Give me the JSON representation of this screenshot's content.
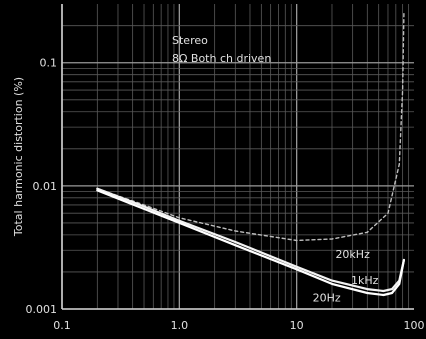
{
  "chart_data": {
    "type": "line",
    "title": "",
    "xlabel": "",
    "ylabel": "Total harmonic distortion (%)",
    "xscale": "log",
    "yscale": "log",
    "xlim": [
      0.1,
      100
    ],
    "ylim": [
      0.001,
      0.3
    ],
    "grid": true,
    "x_ticks": [
      {
        "value": 0.1,
        "label": "0.1"
      },
      {
        "value": 1,
        "label": "1.0"
      },
      {
        "value": 10,
        "label": "10"
      },
      {
        "value": 100,
        "label": "100"
      }
    ],
    "y_ticks": [
      {
        "value": 0.001,
        "label": "0.001"
      },
      {
        "value": 0.01,
        "label": "0.01"
      },
      {
        "value": 0.1,
        "label": "0.1"
      }
    ],
    "annotations": [
      "Stereo",
      "8Ω Both ch driven"
    ],
    "series": [
      {
        "name": "20kHz",
        "label": "20kHz",
        "color": "#bdbdbd",
        "style": "dashed",
        "x": [
          0.2,
          0.5,
          1,
          3,
          10,
          20,
          40,
          60,
          75,
          80,
          82
        ],
        "y": [
          0.0095,
          0.007,
          0.0055,
          0.0043,
          0.0036,
          0.0037,
          0.0042,
          0.006,
          0.015,
          0.06,
          0.25
        ]
      },
      {
        "name": "1kHz",
        "label": "1kHz",
        "color": "#f2f2f2",
        "style": "solid",
        "x": [
          0.2,
          0.5,
          1,
          3,
          10,
          20,
          40,
          55,
          65,
          75,
          82
        ],
        "y": [
          0.0095,
          0.0068,
          0.0052,
          0.0035,
          0.0022,
          0.0017,
          0.00145,
          0.0014,
          0.00145,
          0.0017,
          0.0025
        ]
      },
      {
        "name": "20Hz",
        "label": "20Hz",
        "color": "#ffffff",
        "style": "solid",
        "x": [
          0.2,
          0.5,
          1,
          3,
          10,
          20,
          40,
          55,
          65,
          75,
          82
        ],
        "y": [
          0.0092,
          0.0065,
          0.005,
          0.0033,
          0.0021,
          0.0016,
          0.00135,
          0.0013,
          0.00135,
          0.0016,
          0.0025
        ]
      }
    ]
  }
}
